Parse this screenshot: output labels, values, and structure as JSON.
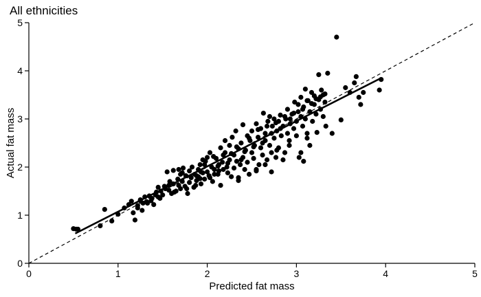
{
  "chart_data": {
    "type": "scatter",
    "title": "All ethnicities",
    "xlabel": "Predicted fat mass",
    "ylabel": "Actual fat mass",
    "xlim": [
      0,
      5
    ],
    "ylim": [
      0,
      5
    ],
    "xticks": [
      "0",
      "1",
      "2",
      "3",
      "4",
      "5"
    ],
    "yticks": [
      "0",
      "1",
      "2",
      "3",
      "4",
      "5"
    ],
    "grid": false,
    "reference_line": {
      "style": "dashed",
      "x": [
        0,
        5
      ],
      "y": [
        0,
        5
      ]
    },
    "fit_line": {
      "style": "solid",
      "x": [
        0.52,
        3.95
      ],
      "y": [
        0.62,
        3.85
      ]
    },
    "points": [
      [
        0.5,
        0.72
      ],
      [
        0.53,
        0.71
      ],
      [
        0.55,
        0.71
      ],
      [
        0.8,
        0.78
      ],
      [
        0.85,
        1.12
      ],
      [
        0.93,
        0.88
      ],
      [
        1.0,
        1.02
      ],
      [
        1.07,
        1.15
      ],
      [
        1.12,
        1.22
      ],
      [
        1.15,
        1.29
      ],
      [
        1.17,
        1.05
      ],
      [
        1.19,
        0.9
      ],
      [
        1.22,
        1.2
      ],
      [
        1.25,
        1.3
      ],
      [
        1.27,
        1.1
      ],
      [
        1.3,
        1.38
      ],
      [
        1.33,
        1.25
      ],
      [
        1.35,
        1.4
      ],
      [
        1.37,
        1.3
      ],
      [
        1.4,
        1.22
      ],
      [
        1.43,
        1.48
      ],
      [
        1.45,
        1.58
      ],
      [
        1.47,
        1.35
      ],
      [
        1.5,
        1.42
      ],
      [
        1.52,
        1.6
      ],
      [
        1.55,
        1.9
      ],
      [
        1.57,
        1.52
      ],
      [
        1.6,
        1.45
      ],
      [
        1.62,
        1.65
      ],
      [
        1.62,
        1.93
      ],
      [
        1.65,
        1.5
      ],
      [
        1.67,
        1.75
      ],
      [
        1.68,
        1.62
      ],
      [
        1.7,
        1.85
      ],
      [
        1.7,
        1.55
      ],
      [
        1.72,
        1.7
      ],
      [
        1.73,
        1.98
      ],
      [
        1.75,
        1.6
      ],
      [
        1.76,
        1.82
      ],
      [
        1.78,
        1.45
      ],
      [
        1.8,
        1.92
      ],
      [
        1.8,
        1.68
      ],
      [
        1.82,
        1.78
      ],
      [
        1.83,
        2.0
      ],
      [
        1.85,
        1.58
      ],
      [
        1.86,
        1.85
      ],
      [
        1.88,
        1.72
      ],
      [
        1.9,
        1.95
      ],
      [
        1.9,
        1.8
      ],
      [
        1.92,
        2.05
      ],
      [
        1.93,
        1.65
      ],
      [
        1.95,
        1.88
      ],
      [
        1.95,
        2.15
      ],
      [
        1.97,
        1.75
      ],
      [
        1.98,
        2.12
      ],
      [
        2.0,
        1.9
      ],
      [
        2.0,
        2.2
      ],
      [
        2.02,
        1.82
      ],
      [
        2.03,
        2.3
      ],
      [
        2.05,
        2.0
      ],
      [
        2.06,
        1.7
      ],
      [
        2.08,
        1.95
      ],
      [
        2.1,
        2.18
      ],
      [
        2.12,
        1.85
      ],
      [
        2.13,
        2.05
      ],
      [
        2.15,
        2.4
      ],
      [
        2.15,
        1.62
      ],
      [
        2.17,
        2.1
      ],
      [
        2.18,
        1.95
      ],
      [
        2.2,
        2.3
      ],
      [
        2.2,
        2.55
      ],
      [
        2.22,
        2.0
      ],
      [
        2.23,
        1.88
      ],
      [
        2.25,
        2.15
      ],
      [
        2.25,
        2.45
      ],
      [
        2.27,
        1.8
      ],
      [
        2.28,
        2.62
      ],
      [
        2.3,
        1.98
      ],
      [
        2.3,
        2.25
      ],
      [
        2.32,
        2.75
      ],
      [
        2.33,
        2.12
      ],
      [
        2.35,
        1.72
      ],
      [
        2.35,
        2.38
      ],
      [
        2.37,
        2.05
      ],
      [
        2.38,
        2.5
      ],
      [
        2.4,
        2.2
      ],
      [
        2.4,
        2.88
      ],
      [
        2.42,
        1.95
      ],
      [
        2.43,
        2.35
      ],
      [
        2.45,
        2.65
      ],
      [
        2.45,
        2.1
      ],
      [
        2.47,
        1.85
      ],
      [
        2.48,
        2.55
      ],
      [
        2.5,
        2.3
      ],
      [
        2.5,
        2.75
      ],
      [
        2.52,
        2.18
      ],
      [
        2.53,
        2.45
      ],
      [
        2.55,
        2.9
      ],
      [
        2.55,
        1.92
      ],
      [
        2.57,
        2.62
      ],
      [
        2.58,
        2.05
      ],
      [
        2.6,
        2.4
      ],
      [
        2.6,
        2.8
      ],
      [
        2.62,
        2.25
      ],
      [
        2.63,
        3.12
      ],
      [
        2.65,
        2.55
      ],
      [
        2.65,
        2.7
      ],
      [
        2.67,
        2.15
      ],
      [
        2.68,
        2.95
      ],
      [
        2.7,
        2.45
      ],
      [
        2.7,
        3.05
      ],
      [
        2.72,
        2.3
      ],
      [
        2.73,
        2.85
      ],
      [
        2.75,
        2.6
      ],
      [
        2.75,
        3.0
      ],
      [
        2.77,
        2.2
      ],
      [
        2.78,
        2.75
      ],
      [
        2.8,
        2.95
      ],
      [
        2.8,
        2.4
      ],
      [
        2.82,
        3.08
      ],
      [
        2.83,
        2.65
      ],
      [
        2.85,
        2.85
      ],
      [
        2.87,
        2.3
      ],
      [
        2.88,
        3.0
      ],
      [
        2.9,
        2.7
      ],
      [
        2.9,
        3.2
      ],
      [
        2.92,
        2.55
      ],
      [
        2.93,
        2.9
      ],
      [
        2.95,
        3.1
      ],
      [
        2.97,
        2.8
      ],
      [
        2.98,
        3.35
      ],
      [
        3.0,
        2.95
      ],
      [
        3.0,
        2.65
      ],
      [
        3.02,
        3.15
      ],
      [
        3.03,
        2.2
      ],
      [
        3.05,
        3.05
      ],
      [
        3.05,
        3.45
      ],
      [
        3.07,
        2.85
      ],
      [
        3.08,
        3.25
      ],
      [
        3.1,
        3.0
      ],
      [
        3.1,
        3.62
      ],
      [
        3.12,
        2.7
      ],
      [
        3.13,
        3.38
      ],
      [
        3.15,
        3.15
      ],
      [
        3.15,
        2.45
      ],
      [
        3.17,
        3.55
      ],
      [
        3.18,
        2.95
      ],
      [
        3.2,
        3.3
      ],
      [
        3.2,
        3.48
      ],
      [
        3.22,
        3.1
      ],
      [
        3.23,
        2.72
      ],
      [
        3.25,
        3.4
      ],
      [
        3.25,
        3.92
      ],
      [
        3.27,
        3.2
      ],
      [
        3.28,
        3.6
      ],
      [
        3.3,
        3.05
      ],
      [
        3.3,
        3.5
      ],
      [
        3.32,
        3.35
      ],
      [
        3.33,
        2.85
      ],
      [
        3.35,
        3.95
      ],
      [
        3.4,
        2.7
      ],
      [
        3.45,
        4.7
      ],
      [
        3.5,
        2.98
      ],
      [
        3.55,
        3.65
      ],
      [
        3.6,
        3.55
      ],
      [
        3.65,
        3.75
      ],
      [
        3.67,
        3.88
      ],
      [
        3.7,
        3.45
      ],
      [
        3.72,
        3.3
      ],
      [
        3.75,
        3.55
      ],
      [
        3.95,
        3.82
      ],
      [
        3.93,
        3.6
      ],
      [
        2.35,
        1.78
      ],
      [
        2.55,
        1.95
      ],
      [
        2.65,
        2.05
      ],
      [
        2.72,
        1.9
      ],
      [
        2.78,
        2.35
      ],
      [
        2.85,
        2.15
      ],
      [
        2.92,
        2.45
      ],
      [
        3.05,
        2.3
      ],
      [
        3.08,
        2.12
      ],
      [
        3.12,
        2.6
      ],
      [
        1.58,
        1.7
      ],
      [
        1.63,
        1.48
      ],
      [
        1.68,
        1.95
      ],
      [
        1.72,
        1.88
      ],
      [
        1.77,
        1.55
      ],
      [
        1.87,
        1.62
      ],
      [
        1.93,
        1.9
      ],
      [
        1.97,
        2.05
      ],
      [
        2.03,
        1.78
      ],
      [
        2.07,
        2.22
      ],
      [
        2.13,
        1.92
      ],
      [
        2.18,
        2.25
      ],
      [
        2.23,
        2.08
      ],
      [
        2.27,
        2.28
      ],
      [
        2.33,
        2.42
      ],
      [
        2.38,
        2.15
      ],
      [
        2.42,
        2.32
      ],
      [
        2.47,
        2.6
      ],
      [
        2.52,
        2.42
      ],
      [
        2.57,
        2.78
      ],
      [
        2.62,
        2.5
      ],
      [
        2.67,
        2.85
      ],
      [
        2.72,
        2.7
      ],
      [
        2.77,
        2.92
      ],
      [
        2.82,
        2.8
      ],
      [
        2.87,
        3.05
      ],
      [
        2.93,
        3.0
      ],
      [
        2.97,
        3.12
      ],
      [
        3.02,
        3.3
      ],
      [
        3.07,
        3.2
      ],
      [
        3.12,
        3.38
      ],
      [
        3.17,
        3.32
      ],
      [
        3.22,
        3.42
      ],
      [
        3.27,
        3.46
      ],
      [
        3.32,
        3.52
      ],
      [
        1.22,
        1.15
      ],
      [
        1.28,
        1.25
      ],
      [
        1.38,
        1.35
      ],
      [
        1.42,
        1.42
      ],
      [
        1.48,
        1.5
      ],
      [
        1.53,
        1.55
      ],
      [
        1.25,
        1.32
      ],
      [
        1.32,
        1.28
      ],
      [
        1.45,
        1.38
      ],
      [
        1.57,
        1.62
      ],
      [
        1.88,
        1.82
      ],
      [
        1.92,
        1.76
      ],
      [
        2.08,
        1.85
      ],
      [
        2.12,
        2.02
      ]
    ]
  }
}
